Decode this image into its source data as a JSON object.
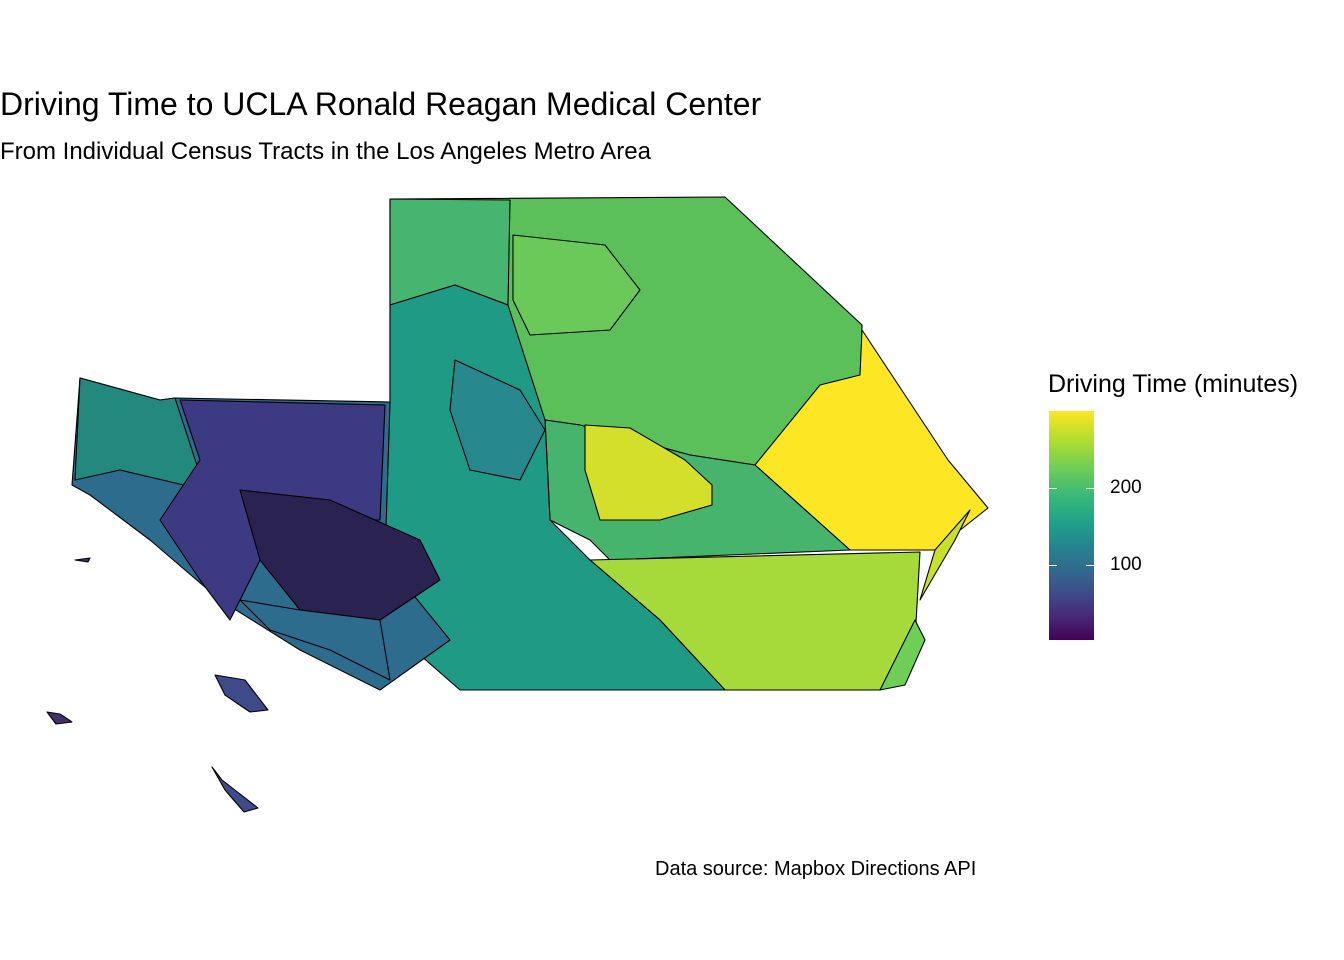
{
  "title": "Driving Time to UCLA Ronald Reagan Medical Center",
  "subtitle": "From Individual Census Tracts in the Los Angeles Metro Area",
  "caption": "Data source: Mapbox Directions API",
  "legend": {
    "title": "Driving Time (minutes)",
    "ticks": [
      "100",
      "200"
    ],
    "palette": [
      "#440154",
      "#3b528b",
      "#21918c",
      "#5ec962",
      "#fde725"
    ]
  },
  "colors": {
    "region_far_east": "#fde725",
    "region_south_east": "#a6d93a",
    "region_north": "#5cc05a",
    "region_center": "#1f9a84",
    "region_west": "#2d6c8d",
    "region_core": "#3c3a82",
    "region_islands": "#42306c"
  }
}
